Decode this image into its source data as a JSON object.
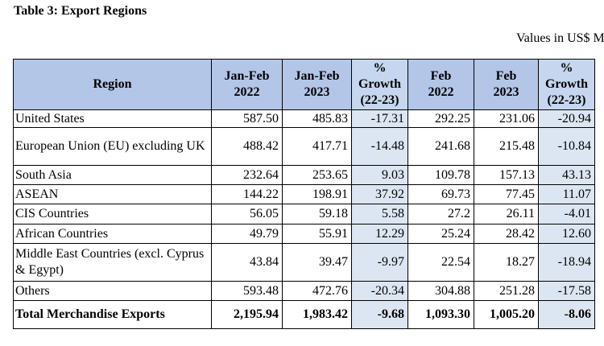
{
  "title": "Table 3: Export Regions",
  "units": "Values in US$ Mn",
  "headers": {
    "region": "Region",
    "janfeb2022": [
      "Jan-Feb",
      "2022"
    ],
    "janfeb2023": [
      "Jan-Feb",
      "2023"
    ],
    "growth1": [
      "%",
      "Growth",
      "(22-23)"
    ],
    "feb2022": [
      "Feb",
      "2022"
    ],
    "feb2023": [
      "Feb",
      "2023"
    ],
    "growth2": [
      "%",
      "Growth",
      "(22-23)"
    ]
  },
  "rows": [
    {
      "region": "United States",
      "c1": "587.50",
      "c2": "485.83",
      "g1": "-17.31",
      "c3": "292.25",
      "c4": "231.06",
      "g2": "-20.94"
    },
    {
      "region": "European Union (EU) excluding UK",
      "c1": "488.42",
      "c2": "417.71",
      "g1": "-14.48",
      "c3": "241.68",
      "c4": "215.48",
      "g2": "-10.84"
    },
    {
      "region": "South Asia",
      "c1": "232.64",
      "c2": "253.65",
      "g1": "9.03",
      "c3": "109.78",
      "c4": "157.13",
      "g2": "43.13"
    },
    {
      "region": "ASEAN",
      "c1": "144.22",
      "c2": "198.91",
      "g1": "37.92",
      "c3": "69.73",
      "c4": "77.45",
      "g2": "11.07"
    },
    {
      "region": "CIS Countries",
      "c1": "56.05",
      "c2": "59.18",
      "g1": "5.58",
      "c3": "27.2",
      "c4": "26.11",
      "g2": "-4.01"
    },
    {
      "region": "African Countries",
      "c1": "49.79",
      "c2": "55.91",
      "g1": "12.29",
      "c3": "25.24",
      "c4": "28.42",
      "g2": "12.60"
    },
    {
      "region": "Middle East Countries (excl. Cyprus & Egypt)",
      "c1": "43.84",
      "c2": "39.47",
      "g1": "-9.97",
      "c3": "22.54",
      "c4": "18.27",
      "g2": "-18.94"
    },
    {
      "region": "Others",
      "c1": "593.48",
      "c2": "472.76",
      "g1": "-20.34",
      "c3": "304.88",
      "c4": "251.28",
      "g2": "-17.58"
    }
  ],
  "total": {
    "region": "Total Merchandise Exports",
    "c1": "2,195.94",
    "c2": "1,983.42",
    "g1": "-9.68",
    "c3": "1,093.30",
    "c4": "1,005.20",
    "g2": "-8.06"
  }
}
